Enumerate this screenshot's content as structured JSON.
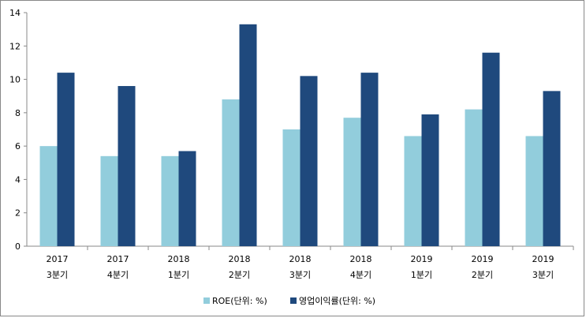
{
  "chart_data": {
    "type": "bar",
    "categories": [
      [
        "2017",
        "3분기"
      ],
      [
        "2017",
        "4분기"
      ],
      [
        "2018",
        "1분기"
      ],
      [
        "2018",
        "2분기"
      ],
      [
        "2018",
        "3분기"
      ],
      [
        "2018",
        "4분기"
      ],
      [
        "2019",
        "1분기"
      ],
      [
        "2019",
        "2분기"
      ],
      [
        "2019",
        "3분기"
      ]
    ],
    "series": [
      {
        "name": "ROE(단위: %)",
        "color": "#92cddc",
        "values": [
          6.0,
          5.4,
          5.4,
          8.8,
          7.0,
          7.7,
          6.6,
          8.2,
          6.6
        ]
      },
      {
        "name": "영업이익률(단위: %)",
        "color": "#1f497d",
        "values": [
          10.4,
          9.6,
          5.7,
          13.3,
          10.2,
          10.4,
          7.9,
          11.6,
          9.3
        ]
      }
    ],
    "ylim": [
      0,
      14
    ],
    "yticks": [
      0,
      2,
      4,
      6,
      8,
      10,
      12,
      14
    ],
    "grid": false,
    "legend": "bottom"
  }
}
